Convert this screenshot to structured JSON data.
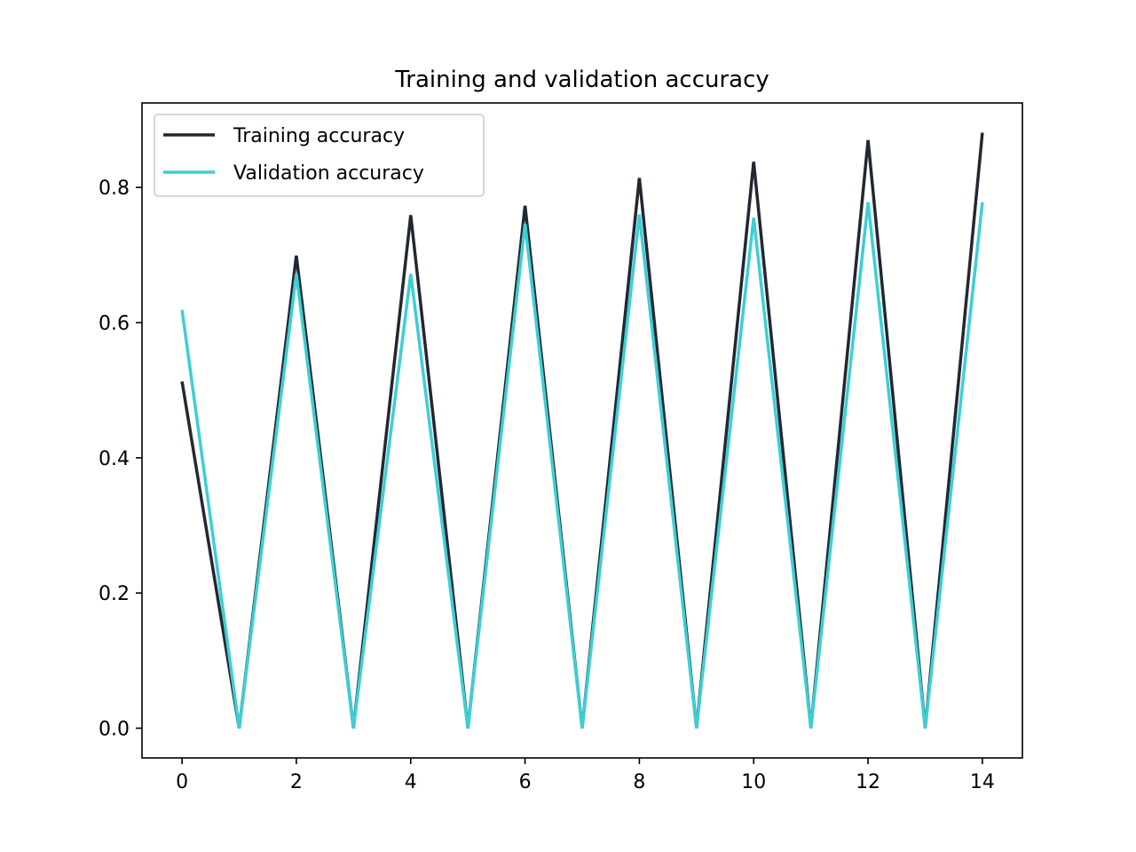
{
  "chart_data": {
    "type": "line",
    "title": "Training and validation accuracy",
    "xlabel": "",
    "ylabel": "",
    "x": [
      0,
      1,
      2,
      3,
      4,
      5,
      6,
      7,
      8,
      9,
      10,
      11,
      12,
      13,
      14
    ],
    "xlim": [
      -0.7,
      14.7
    ],
    "ylim": [
      -0.044,
      0.925
    ],
    "xticks": [
      0,
      2,
      4,
      6,
      8,
      10,
      12,
      14
    ],
    "yticks": [
      0.0,
      0.2,
      0.4,
      0.6,
      0.8
    ],
    "xtick_labels": [
      "0",
      "2",
      "4",
      "6",
      "8",
      "10",
      "12",
      "14"
    ],
    "ytick_labels": [
      "0.0",
      "0.2",
      "0.4",
      "0.6",
      "0.8"
    ],
    "grid": false,
    "legend_position": "top-left",
    "series": [
      {
        "name": "Training accuracy",
        "color": "#222831",
        "values": [
          0.513,
          0.0,
          0.699,
          0.0,
          0.759,
          0.0,
          0.773,
          0.0,
          0.814,
          0.0,
          0.838,
          0.0,
          0.87,
          0.0,
          0.881
        ]
      },
      {
        "name": "Validation accuracy",
        "color": "#3ccfd6",
        "values": [
          0.619,
          0.0,
          0.672,
          0.0,
          0.672,
          0.0,
          0.746,
          0.0,
          0.76,
          0.0,
          0.755,
          0.0,
          0.778,
          0.0,
          0.778
        ]
      }
    ]
  }
}
